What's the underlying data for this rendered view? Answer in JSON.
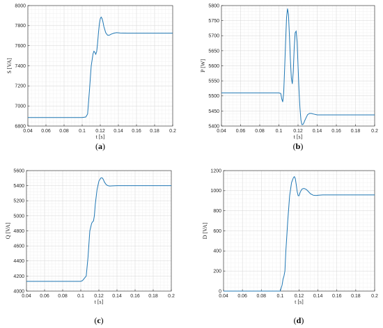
{
  "colors": {
    "series": "#1f77b4"
  },
  "chart_data": [
    {
      "id": "a",
      "type": "line",
      "caption": "a",
      "xlabel": "t [s]",
      "ylabel": "S [VA]",
      "xlim": [
        0.04,
        0.2
      ],
      "ylim": [
        6800,
        8000
      ],
      "xticks": [
        0.04,
        0.06,
        0.08,
        0.1,
        0.12,
        0.14,
        0.16,
        0.18,
        0.2
      ],
      "xtick_labels": [
        "0.04",
        "0.06",
        "0.08",
        "0.1",
        "0.12",
        "0.14",
        "0.16",
        "0.18",
        "0.2"
      ],
      "yticks": [
        6800,
        7000,
        7200,
        7400,
        7600,
        7800,
        8000
      ],
      "ytick_labels": [
        "6800",
        "7000",
        "7200",
        "7400",
        "7600",
        "7800",
        "8000"
      ],
      "grid": true,
      "series": [
        {
          "x": [
            0.04,
            0.1,
            0.104,
            0.106,
            0.108,
            0.11,
            0.112,
            0.113,
            0.114,
            0.115,
            0.116,
            0.117,
            0.118,
            0.119,
            0.12,
            0.121,
            0.122,
            0.123,
            0.124,
            0.126,
            0.128,
            0.13,
            0.132,
            0.135,
            0.138,
            0.142,
            0.15,
            0.17,
            0.2
          ],
          "y": [
            6885,
            6885,
            6890,
            6920,
            7150,
            7400,
            7520,
            7545,
            7535,
            7515,
            7540,
            7620,
            7730,
            7820,
            7870,
            7885,
            7870,
            7835,
            7790,
            7730,
            7705,
            7705,
            7715,
            7725,
            7730,
            7727,
            7725,
            7725,
            7725
          ]
        }
      ]
    },
    {
      "id": "b",
      "type": "line",
      "caption": "b",
      "xlabel": "t [s]",
      "ylabel": "P [W]",
      "xlim": [
        0.04,
        0.2
      ],
      "ylim": [
        5400,
        5800
      ],
      "xticks": [
        0.04,
        0.06,
        0.08,
        0.1,
        0.12,
        0.14,
        0.16,
        0.18,
        0.2
      ],
      "xtick_labels": [
        "0.04",
        "0.06",
        "0.08",
        "0.1",
        "0.12",
        "0.14",
        "0.16",
        "0.18",
        "0.2"
      ],
      "yticks": [
        5400,
        5450,
        5500,
        5550,
        5600,
        5650,
        5700,
        5750,
        5800
      ],
      "ytick_labels": [
        "5400",
        "5450",
        "5500",
        "5550",
        "5600",
        "5650",
        "5700",
        "5750",
        "5800"
      ],
      "grid": true,
      "series": [
        {
          "x": [
            0.04,
            0.1,
            0.102,
            0.103,
            0.104,
            0.105,
            0.106,
            0.107,
            0.108,
            0.109,
            0.11,
            0.111,
            0.112,
            0.113,
            0.114,
            0.115,
            0.116,
            0.117,
            0.118,
            0.119,
            0.12,
            0.121,
            0.122,
            0.123,
            0.124,
            0.125,
            0.126,
            0.127,
            0.128,
            0.13,
            0.132,
            0.134,
            0.136,
            0.14,
            0.145,
            0.15,
            0.17,
            0.2
          ],
          "y": [
            5510,
            5510,
            5508,
            5490,
            5480,
            5510,
            5590,
            5680,
            5760,
            5790,
            5770,
            5700,
            5620,
            5560,
            5540,
            5580,
            5660,
            5710,
            5715,
            5680,
            5600,
            5520,
            5460,
            5420,
            5405,
            5405,
            5410,
            5418,
            5425,
            5438,
            5442,
            5442,
            5440,
            5437,
            5437,
            5437,
            5437,
            5437
          ]
        }
      ]
    },
    {
      "id": "c",
      "type": "line",
      "caption": "c",
      "xlabel": "t [s]",
      "ylabel": "Q [VA]",
      "xlim": [
        0.04,
        0.2
      ],
      "ylim": [
        4000,
        5600
      ],
      "xticks": [
        0.04,
        0.06,
        0.08,
        0.1,
        0.12,
        0.14,
        0.16,
        0.18,
        0.2
      ],
      "xtick_labels": [
        "0.04",
        "0.06",
        "0.08",
        "0.1",
        "0.12",
        "0.14",
        "0.16",
        "0.18",
        "0.2"
      ],
      "yticks": [
        4000,
        4200,
        4400,
        4600,
        4800,
        5000,
        5200,
        5400,
        5600
      ],
      "ytick_labels": [
        "4000",
        "4200",
        "4400",
        "4600",
        "4800",
        "5000",
        "5200",
        "5400",
        "5600"
      ],
      "grid": true,
      "series": [
        {
          "x": [
            0.04,
            0.1,
            0.102,
            0.104,
            0.106,
            0.108,
            0.11,
            0.112,
            0.113,
            0.114,
            0.115,
            0.116,
            0.118,
            0.12,
            0.122,
            0.123,
            0.124,
            0.125,
            0.126,
            0.128,
            0.13,
            0.132,
            0.135,
            0.14,
            0.15,
            0.17,
            0.2
          ],
          "y": [
            4130,
            4130,
            4140,
            4170,
            4200,
            4450,
            4800,
            4900,
            4920,
            4930,
            5000,
            5150,
            5350,
            5460,
            5500,
            5505,
            5500,
            5480,
            5450,
            5415,
            5400,
            5395,
            5398,
            5400,
            5400,
            5400,
            5400
          ]
        }
      ]
    },
    {
      "id": "d",
      "type": "line",
      "caption": "d",
      "xlabel": "t [s]",
      "ylabel": "D [VA]",
      "xlim": [
        0.04,
        0.2
      ],
      "ylim": [
        0,
        1200
      ],
      "xticks": [
        0.04,
        0.06,
        0.08,
        0.1,
        0.12,
        0.14,
        0.16,
        0.18,
        0.2
      ],
      "xtick_labels": [
        "0.04",
        "0.06",
        "0.08",
        "0.1",
        "0.12",
        "0.14",
        "0.16",
        "0.18",
        "0.2"
      ],
      "yticks": [
        0,
        200,
        400,
        600,
        800,
        1000,
        1200
      ],
      "ytick_labels": [
        "0",
        "200",
        "400",
        "600",
        "800",
        "1000",
        "1200"
      ],
      "grid": true,
      "series": [
        {
          "x": [
            0.04,
            0.1,
            0.102,
            0.103,
            0.104,
            0.105,
            0.106,
            0.108,
            0.11,
            0.112,
            0.114,
            0.115,
            0.116,
            0.117,
            0.118,
            0.119,
            0.12,
            0.121,
            0.122,
            0.123,
            0.124,
            0.125,
            0.126,
            0.128,
            0.13,
            0.132,
            0.135,
            0.138,
            0.14,
            0.145,
            0.15,
            0.17,
            0.2
          ],
          "y": [
            0,
            0,
            60,
            120,
            150,
            200,
            400,
            700,
            950,
            1080,
            1130,
            1140,
            1120,
            1060,
            990,
            950,
            950,
            980,
            1000,
            1015,
            1020,
            1022,
            1020,
            1010,
            990,
            970,
            955,
            952,
            955,
            958,
            958,
            958,
            958
          ]
        }
      ]
    }
  ]
}
